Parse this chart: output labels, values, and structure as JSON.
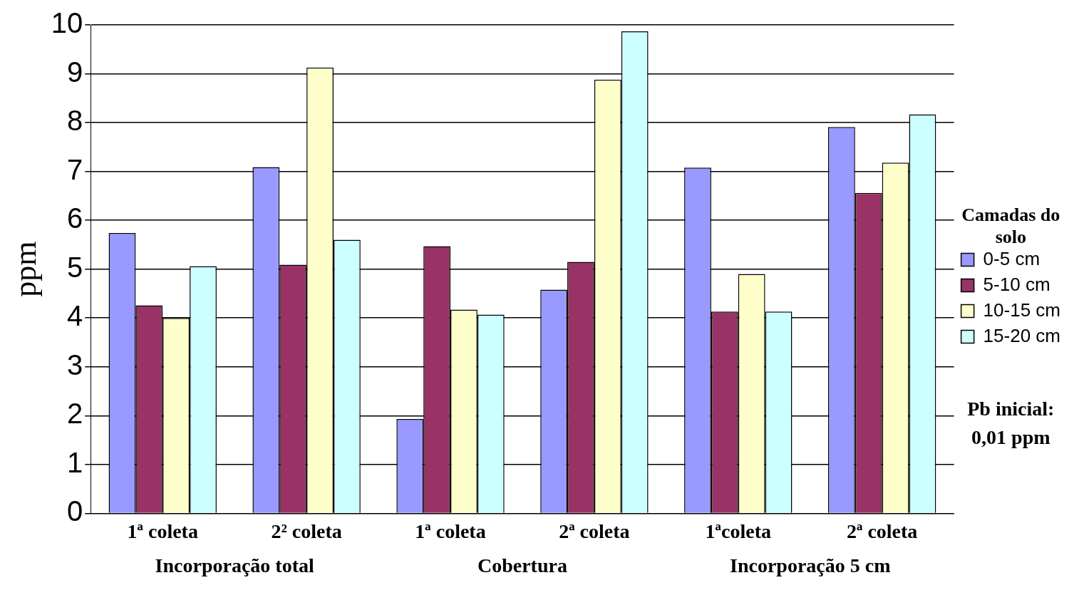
{
  "chart_data": {
    "type": "bar",
    "ylabel": "ppm",
    "legend_title": "Camadas do solo",
    "categories": [
      "1ª coleta",
      "2² coleta",
      "1ª coleta",
      "2ª coleta",
      "1ªcoleta",
      "2ª coleta"
    ],
    "series": [
      {
        "name": "0-5 cm",
        "color": "#9999ff",
        "values": [
          5.74,
          7.09,
          1.93,
          4.58,
          7.08,
          7.91
        ]
      },
      {
        "name": "5-10 cm",
        "color": "#993366",
        "values": [
          4.26,
          5.09,
          5.47,
          5.15,
          4.13,
          6.56
        ]
      },
      {
        "name": "10-15 cm",
        "color": "#ffffcc",
        "values": [
          4.0,
          9.13,
          4.17,
          8.88,
          4.9,
          7.18
        ]
      },
      {
        "name": "15-20 cm",
        "color": "#ccffff",
        "values": [
          5.06,
          5.6,
          4.07,
          9.87,
          4.13,
          8.17
        ]
      }
    ],
    "annotations": [
      "Incorporação total",
      "Cobertura",
      "Incorporação 5 cm",
      "Pb inicial: 0,01 ppm"
    ],
    "ylim": [
      0,
      10
    ],
    "yticks": [
      0,
      1,
      2,
      3,
      4,
      5,
      6,
      7,
      8,
      9,
      10
    ],
    "grid": "y",
    "legend": "right"
  }
}
